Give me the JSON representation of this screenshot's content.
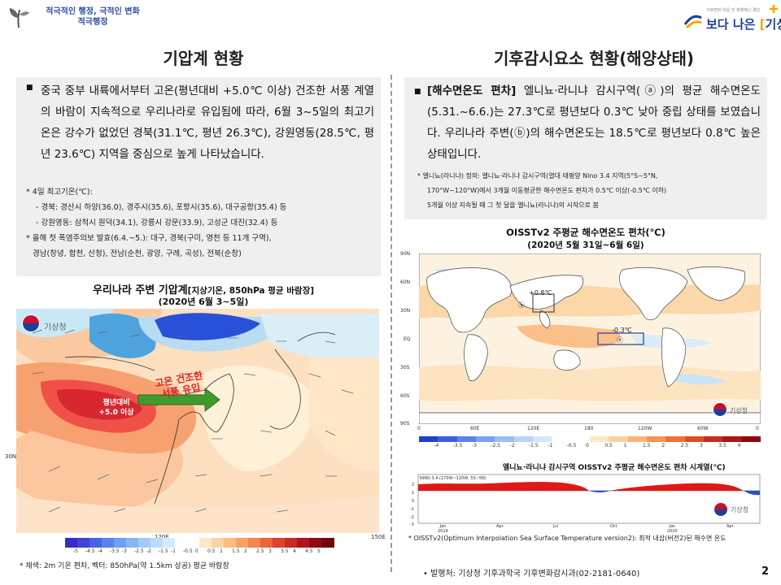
{
  "header": {
    "slogan_line1": "적극적인 행정, 극적인 변화",
    "slogan_line2": "적극행정",
    "kma_logo_sub": "기후변화 대응 및 재해재난 경감",
    "kma_logo_main_a": "보다 나은",
    "kma_logo_main_b": "기상청"
  },
  "left": {
    "title": "기압계 현황",
    "bullet_text": "중국 중부 내륙에서부터 고온(평년대비 +5.0℃ 이상) 건조한 서풍 계열의 바람이 지속적으로 우리나라로 유입됨에 따라, 6월 3~5일의 최고기온은 강수가 없었던 경북(31.1℃, 평년 26.3℃), 강원영동(28.5℃, 평년 23.6℃) 지역을 중심으로 높게 나타났습니다.",
    "notes": [
      "* 4일 최고기온(℃):",
      "- 경북: 경산시 하양(36.0), 경주시(35.6), 포항시(35.6), 대구공항(35.4) 등",
      "- 강원영동: 삼척시 원덕(34.1), 강릉시 강문(33.9), 고성군 대진(32.4) 등",
      "* 올해 첫 폭염주의보 발효(6.4.~5.): 대구, 경북(구미, 영천 등 11개 구역),",
      "경남(창녕, 합천, 산청), 전남(순천, 광양, 구례, 곡성), 전북(순창)"
    ],
    "map_title_a": "우리나라 주변 기압계",
    "map_title_b": "[지상기온, 850hPa 평균 바람장]",
    "map_subtitle": "(2020년 6월 3~5일)",
    "map_annotation_hot": "평년대비\n+5.0 이상",
    "map_annotation_arrow": "고온 건조한\n서풍 유입",
    "map_logo": "기상청",
    "lat_label": "30N",
    "lon_label_1": "120E",
    "lon_label_2": "150E",
    "colorbar_labels": [
      "-5",
      "-4.5",
      "-4",
      "-3.5",
      "-3",
      "-2.5",
      "-2",
      "-1.5",
      "-1",
      "-0.5",
      "0",
      "0.5",
      "1",
      "1.5",
      "2",
      "2.5",
      "3",
      "3.5",
      "4",
      "4.5",
      "5"
    ],
    "caption": "* 채색: 2m 기온 편차, 벡터: 850hPa(약 1.5km 상공) 평균 바람장"
  },
  "right": {
    "title": "기후감시요소 현황(해양상태)",
    "bullet_bold": "[해수면온도 편차]",
    "bullet_text": " 엘니뇨·라니냐 감시구역(ⓐ)의 평균 해수면온도(5.31.~6.6.)는 27.3℃로 평년보다 0.3℃ 낮아 중립 상태를 보였습니다. 우리나라 주변(ⓑ)의 해수면온도는 18.5℃로 평년보다 0.8℃ 높은 상태입니다.",
    "notes": [
      "* 엘니뇨(라니냐) 정의: 엘니뇨·라니냐 감시구역(열대 태평양 Nino 3.4 지역(5°S~5°N,",
      "170°W~120°W)에서 3개월 이동평균한 해수면온도 편차가 0.5℃ 이상(-0.5℃ 이하)",
      "5개월 이상 지속될 때 그 첫 달을 엘니뇨(라니냐)의 시작으로 봄"
    ],
    "map_title": "OISSTv2 주평균 해수면온도 편차(℃)",
    "map_subtitle": "(2020년 5월 31일~6월 6일)",
    "lat_labels": [
      "90N",
      "60N",
      "30N",
      "EQ",
      "30S",
      "60S",
      "90S"
    ],
    "lon_labels": [
      "0",
      "60E",
      "120E",
      "180",
      "120W",
      "60W",
      "0"
    ],
    "annot_b": "ⓑ",
    "annot_b_val": "+0.8℃",
    "annot_a": "ⓐ",
    "annot_a_val": "-0.3℃",
    "map_logo": "기상청",
    "colorbar_labels": [
      "-4",
      "-3.5",
      "-3",
      "-2.5",
      "-2",
      "-1.5",
      "-1",
      "-0.5",
      "0",
      "0.5",
      "1",
      "1.5",
      "2",
      "2.5",
      "3",
      "3.5",
      "4"
    ],
    "ts_title": "엘니뇨·라니냐 감시구역 OISSTv2 주평균 해수면온도 편차 시계열(℃)",
    "ts_legend": "NINO 3.4 (170W~120W, 5S~5N)",
    "ts_y_labels": [
      "2",
      "1",
      "0",
      "-1",
      "-2",
      "-3"
    ],
    "ts_x_labels": [
      "Jan\n2019",
      "Apr",
      "Jul",
      "Oct",
      "Jan\n2020",
      "Apr"
    ],
    "ts_logo": "기상청",
    "caption": "* OISSTv2(Optimum Interpolation Sea Surface Temperature version2): 최적 내삽(버전2)된 해수면 온도"
  },
  "footer": {
    "source": "• 발행처: 기상청 기후과학국 기후변화감시과(02-2181-0640)",
    "page_number": "2"
  }
}
